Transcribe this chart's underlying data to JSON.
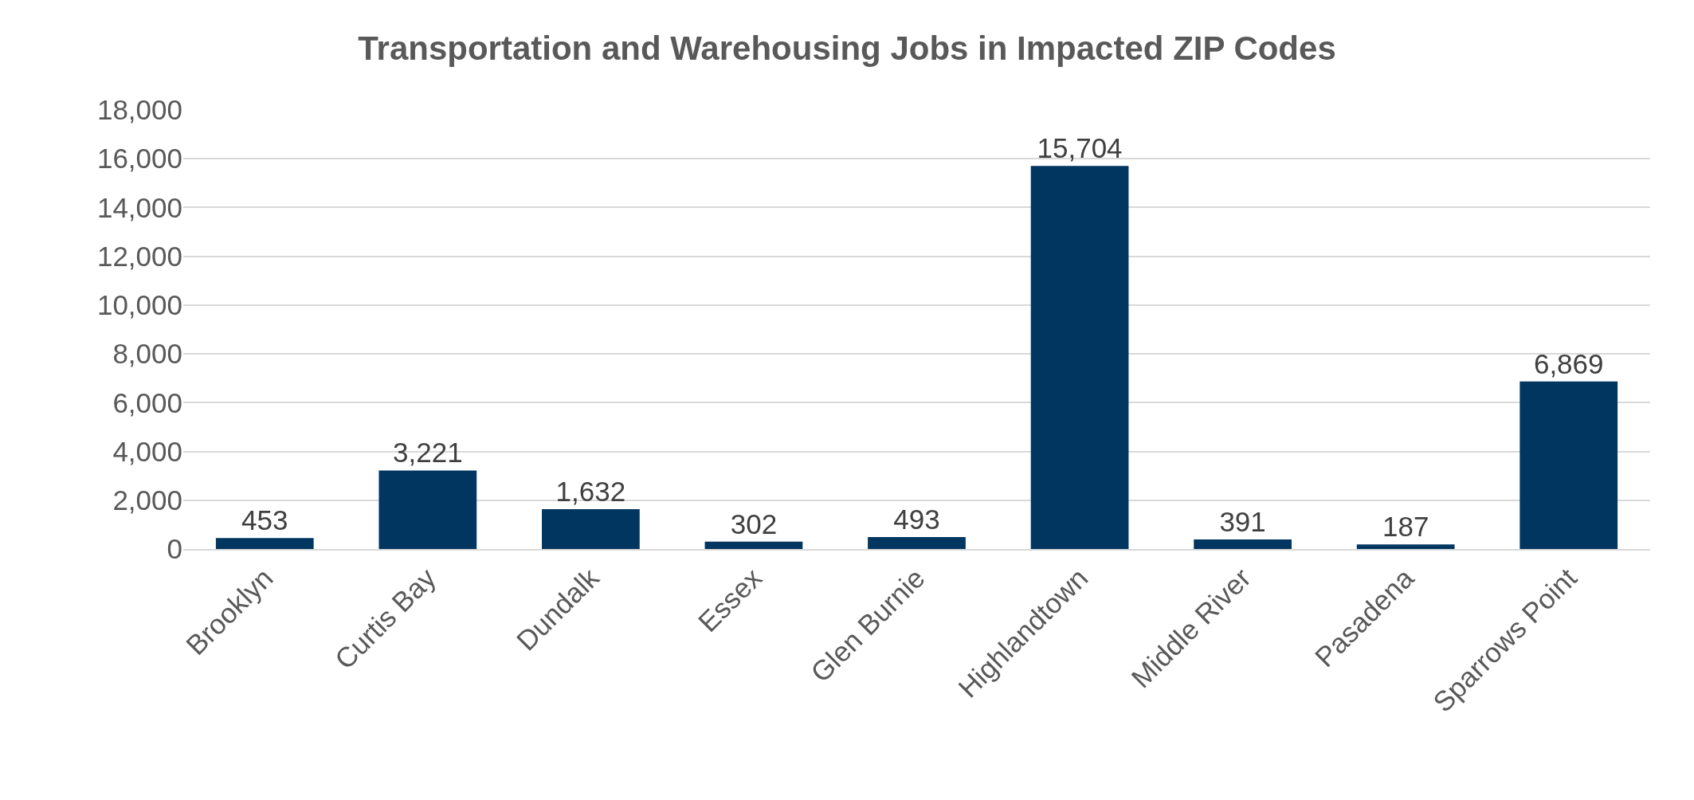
{
  "chart_data": {
    "type": "bar",
    "title": "Transportation and Warehousing Jobs in Impacted ZIP Codes",
    "categories": [
      "Brooklyn",
      "Curtis Bay",
      "Dundalk",
      "Essex",
      "Glen Burnie",
      "Highlandtown",
      "Middle River",
      "Pasadena",
      "Sparrows Point"
    ],
    "values": [
      453,
      3221,
      1632,
      302,
      493,
      15704,
      391,
      187,
      6869
    ],
    "color": "#003660",
    "ylim": [
      0,
      18000
    ],
    "yticks": [
      {
        "value": 0,
        "label": "0"
      },
      {
        "value": 2000,
        "label": "2,000"
      },
      {
        "value": 4000,
        "label": "4,000"
      },
      {
        "value": 6000,
        "label": "6,000"
      },
      {
        "value": 8000,
        "label": "8,000"
      },
      {
        "value": 10000,
        "label": "10,000"
      },
      {
        "value": 12000,
        "label": "12,000"
      },
      {
        "value": 14000,
        "label": "14,000"
      },
      {
        "value": 16000,
        "label": "16,000"
      },
      {
        "value": 18000,
        "label": "18,000"
      }
    ],
    "value_labels": [
      "453",
      "3,221",
      "1,632",
      "302",
      "493",
      "15,704",
      "391",
      "187",
      "6,869"
    ],
    "grid": "y"
  }
}
